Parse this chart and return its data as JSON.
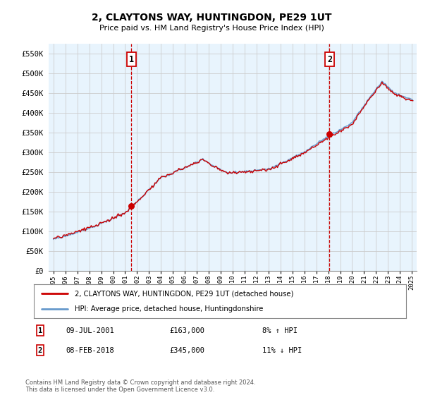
{
  "title": "2, CLAYTONS WAY, HUNTINGDON, PE29 1UT",
  "subtitle": "Price paid vs. HM Land Registry's House Price Index (HPI)",
  "legend_line1": "2, CLAYTONS WAY, HUNTINGDON, PE29 1UT (detached house)",
  "legend_line2": "HPI: Average price, detached house, Huntingdonshire",
  "sale1_label": "1",
  "sale1_date": "09-JUL-2001",
  "sale1_price": "£163,000",
  "sale1_hpi": "8% ↑ HPI",
  "sale1_year": 2001.53,
  "sale1_value": 163000,
  "sale2_label": "2",
  "sale2_date": "08-FEB-2018",
  "sale2_price": "£345,000",
  "sale2_hpi": "11% ↓ HPI",
  "sale2_year": 2018.11,
  "sale2_value": 345000,
  "copyright": "Contains HM Land Registry data © Crown copyright and database right 2024.\nThis data is licensed under the Open Government Licence v3.0.",
  "line_color_house": "#cc0000",
  "line_color_hpi": "#6699cc",
  "fill_color": "#d0e4f5",
  "background_color": "#ffffff",
  "grid_color": "#cccccc",
  "ylim": [
    0,
    575000
  ],
  "yticks": [
    0,
    50000,
    100000,
    150000,
    200000,
    250000,
    300000,
    350000,
    400000,
    450000,
    500000,
    550000
  ],
  "ytick_labels": [
    "£0",
    "£50K",
    "£100K",
    "£150K",
    "£200K",
    "£250K",
    "£300K",
    "£350K",
    "£400K",
    "£450K",
    "£500K",
    "£550K"
  ]
}
